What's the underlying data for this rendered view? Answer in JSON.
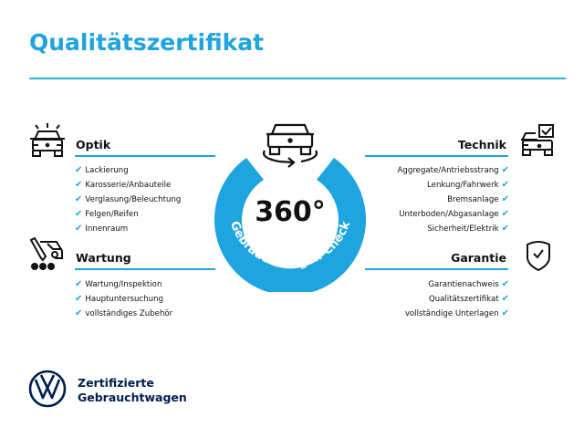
{
  "title": "Qualitätszertifikat",
  "accent_color": "#1ea5df",
  "badge": {
    "value": "360°",
    "ring_text": "Gebrauchtwagen-Check",
    "icon": "car-rotate-360-icon"
  },
  "sections": {
    "optik": {
      "heading": "Optik",
      "icon": "car-lights-icon",
      "items": [
        "Lackierung",
        "Karosserie/Anbauteile",
        "Verglasung/Beleuchtung",
        "Felgen/Reifen",
        "Innenraum"
      ]
    },
    "wartung": {
      "heading": "Wartung",
      "icon": "service-tool-car-icon",
      "items": [
        "Wartung/Inspektion",
        "Hauptuntersuchung",
        "vollständiges Zubehör"
      ]
    },
    "technik": {
      "heading": "Technik",
      "icon": "car-checklist-icon",
      "items": [
        "Aggregate/Antriebsstrang",
        "Lenkung/Fahrwerk",
        "Bremsanlage",
        "Unterboden/Abgasanlage",
        "Sicherheit/Elektrik"
      ]
    },
    "garantie": {
      "heading": "Garantie",
      "icon": "shield-check-icon",
      "items": [
        "Garantienachweis",
        "Qualitätszertifikat",
        "vollständige Unterlagen"
      ]
    }
  },
  "check_mark": "✔",
  "brand": {
    "line1": "Zertifizierte",
    "line2": "Gebrauchtwagen",
    "logo": "vw-logo",
    "color": "#001e50"
  }
}
